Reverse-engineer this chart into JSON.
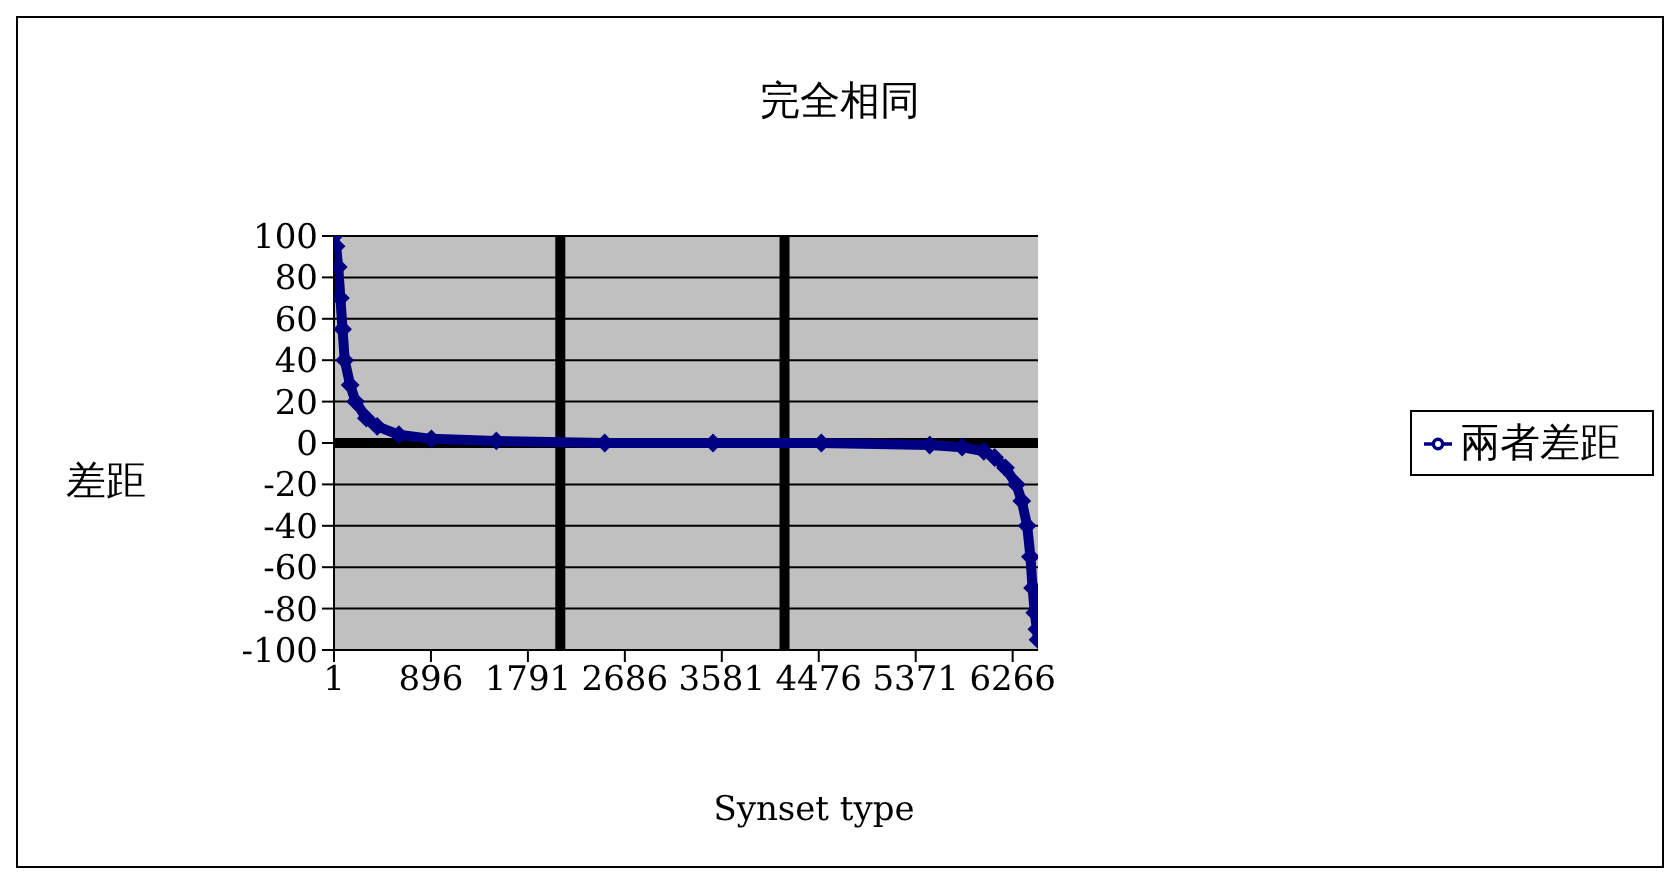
{
  "chart_data": {
    "type": "line",
    "title": "完全相同",
    "xlabel": "Synset type",
    "ylabel": "差距",
    "x": [
      1,
      20,
      40,
      60,
      80,
      100,
      150,
      200,
      300,
      400,
      600,
      900,
      1500,
      2500,
      3500,
      4500,
      5500,
      5800,
      6000,
      6100,
      6200,
      6300,
      6350,
      6400,
      6430,
      6450,
      6470,
      6490,
      6500
    ],
    "series": [
      {
        "name": "兩者差距",
        "color": "#000080",
        "values": [
          100,
          95,
          85,
          70,
          55,
          40,
          28,
          20,
          12,
          8,
          4,
          2,
          1,
          0,
          0,
          0,
          -1,
          -2,
          -4,
          -7,
          -12,
          -20,
          -28,
          -40,
          -55,
          -70,
          -82,
          -90,
          -95
        ]
      }
    ],
    "xlim": [
      1,
      6500
    ],
    "xticks": [
      1,
      896,
      1791,
      2686,
      3581,
      4476,
      5371,
      6266
    ],
    "ylim": [
      -100,
      100
    ],
    "yticks": [
      -100,
      -80,
      -60,
      -40,
      -20,
      0,
      20,
      40,
      60,
      80,
      100
    ],
    "ref_lines": [
      {
        "axis": "y",
        "value": 0,
        "color": "#000000"
      },
      {
        "axis": "x",
        "value": 2090,
        "color": "#000000"
      },
      {
        "axis": "x",
        "value": 4160,
        "color": "#000000"
      }
    ],
    "grid": "y",
    "legend": "right",
    "marker": "diamond",
    "line_style": "solid"
  }
}
